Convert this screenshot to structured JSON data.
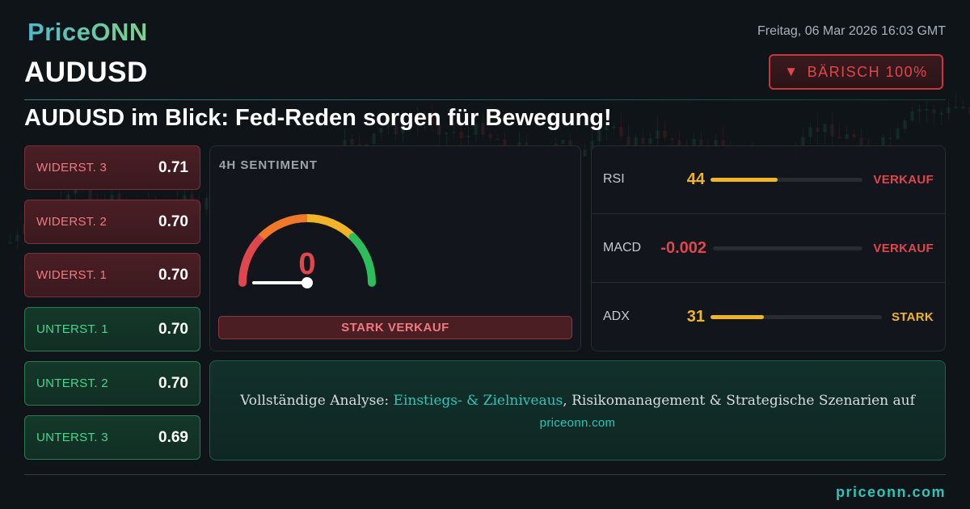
{
  "brand": {
    "logo_text": "PriceONN"
  },
  "header": {
    "datetime": "Freitag, 06 Mar 2026 16:03 GMT",
    "symbol": "AUDUSD",
    "bias_label": "BÄRISCH 100%",
    "bias_icon": "triangle-down-icon"
  },
  "headline": "AUDUSD im Blick: Fed-Reden sorgen für Bewegung!",
  "levels": [
    {
      "name": "WIDERST. 3",
      "value": "0.71",
      "kind": "resistance"
    },
    {
      "name": "WIDERST. 2",
      "value": "0.70",
      "kind": "resistance"
    },
    {
      "name": "WIDERST. 1",
      "value": "0.70",
      "kind": "resistance"
    },
    {
      "name": "UNTERST. 1",
      "value": "0.70",
      "kind": "support"
    },
    {
      "name": "UNTERST. 2",
      "value": "0.70",
      "kind": "support"
    },
    {
      "name": "UNTERST. 3",
      "value": "0.69",
      "kind": "support"
    }
  ],
  "sentiment": {
    "title": "4H SENTIMENT",
    "value": "0",
    "value_fraction": 0,
    "label": "STARK VERKAUF"
  },
  "indicators": [
    {
      "name": "RSI",
      "value": "44",
      "signal": "VERKAUF",
      "fill_fraction": 0.44,
      "value_color": "#f0b429",
      "bar_color": "#f0b429",
      "signal_color": "#e0474c"
    },
    {
      "name": "MACD",
      "value": "-0.002",
      "signal": "VERKAUF",
      "fill_fraction": 0.0,
      "value_color": "#e0474c",
      "bar_color": "#e0474c",
      "signal_color": "#e0474c"
    },
    {
      "name": "ADX",
      "value": "31",
      "signal": "STARK",
      "fill_fraction": 0.31,
      "value_color": "#f0b429",
      "bar_color": "#f0b429",
      "signal_color": "#f0b429"
    }
  ],
  "cta": {
    "prefix": "Vollständige Analyse: ",
    "highlight": "Einstiegs- & Zielniveaus",
    "suffix": ", Risikomanagement & Strategische Szenarien auf",
    "link": "priceonn.com"
  },
  "footer": {
    "link": "priceonn.com"
  },
  "colors": {
    "bearish": "#e0474c",
    "bullish": "#46d88a",
    "accent": "#2ec4b6",
    "warning": "#f0b429"
  }
}
